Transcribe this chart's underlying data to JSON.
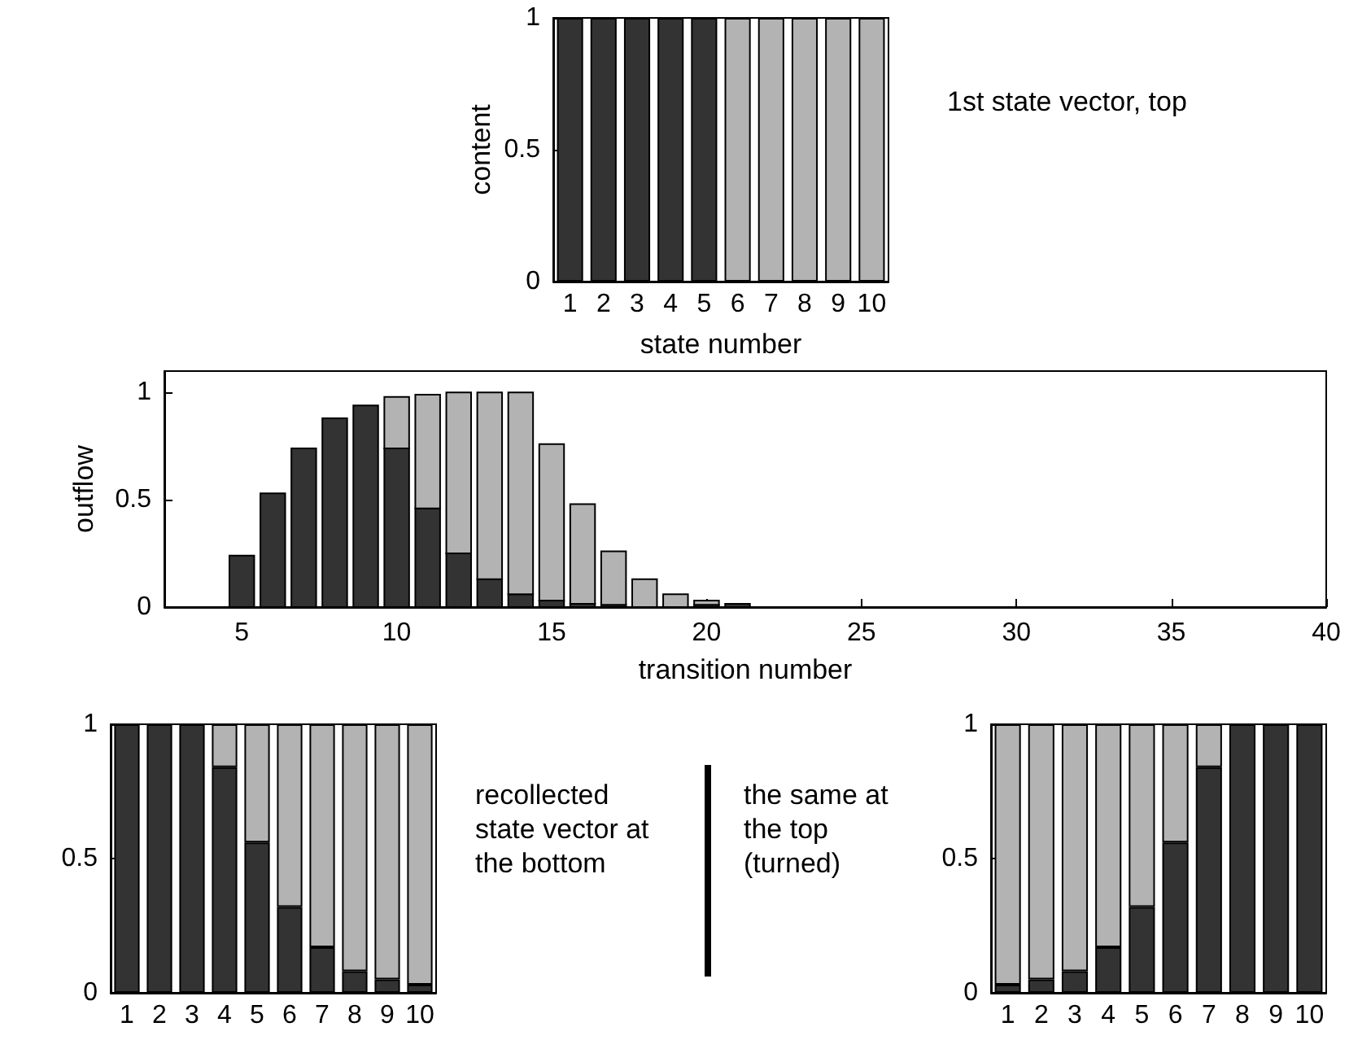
{
  "chart_data": [
    {
      "type": "bar",
      "stacked": true,
      "categories": [
        "1",
        "2",
        "3",
        "4",
        "5",
        "6",
        "7",
        "8",
        "9",
        "10"
      ],
      "xlabel": "state number",
      "ylabel": "content",
      "ylim": [
        0,
        1
      ],
      "yticks": [
        0,
        0.5,
        1
      ],
      "annotations": [
        "1st state vector, top"
      ],
      "series": [
        {
          "color": "#333333",
          "values": [
            1,
            1,
            1,
            1,
            1,
            0,
            0,
            0,
            0,
            0
          ]
        },
        {
          "color": "#b3b3b3",
          "values": [
            0,
            0,
            0,
            0,
            0,
            1,
            1,
            1,
            1,
            1
          ]
        }
      ]
    },
    {
      "type": "bar",
      "stacked": true,
      "x": [
        5,
        6,
        7,
        8,
        9,
        10,
        11,
        12,
        13,
        14,
        15,
        16,
        17,
        18,
        19,
        20,
        21,
        22,
        23,
        24,
        25,
        26,
        27,
        28,
        29,
        30,
        31,
        32,
        33,
        34,
        35,
        36,
        37,
        38,
        39,
        40
      ],
      "xlim": [
        2.5,
        40
      ],
      "xticks": [
        5,
        10,
        15,
        20,
        25,
        30,
        35,
        40
      ],
      "xlabel": "transition number",
      "ylabel": "outflow",
      "ylim": [
        0,
        1.1
      ],
      "yticks": [
        0,
        0.5,
        1
      ],
      "series": [
        {
          "color": "#333333",
          "values": [
            0.24,
            0.53,
            0.74,
            0.88,
            0.94,
            0.74,
            0.46,
            0.25,
            0.13,
            0.06,
            0.03,
            0.015,
            0.01,
            0,
            0,
            0.01,
            0.015,
            0,
            0,
            0,
            0,
            0,
            0,
            0,
            0,
            0,
            0,
            0,
            0,
            0,
            0,
            0,
            0,
            0,
            0,
            0
          ]
        },
        {
          "color": "#b3b3b3",
          "values": [
            0,
            0,
            0,
            0,
            0,
            0.24,
            0.53,
            0.75,
            0.87,
            0.94,
            0.73,
            0.465,
            0.25,
            0.13,
            0.06,
            0.02,
            0,
            0,
            0,
            0,
            0,
            0,
            0,
            0,
            0,
            0,
            0,
            0,
            0,
            0,
            0,
            0,
            0,
            0,
            0,
            0
          ]
        }
      ]
    },
    {
      "type": "bar",
      "stacked": true,
      "categories": [
        "1",
        "2",
        "3",
        "4",
        "5",
        "6",
        "7",
        "8",
        "9",
        "10"
      ],
      "ylim": [
        0,
        1
      ],
      "yticks": [
        0,
        0.5,
        1
      ],
      "annotations": [
        "recollected state vector at the bottom"
      ],
      "series": [
        {
          "color": "#333333",
          "values": [
            1,
            1,
            1,
            0.84,
            0.56,
            0.32,
            0.17,
            0.08,
            0.05,
            0.03
          ]
        },
        {
          "color": "#b3b3b3",
          "values": [
            0,
            0,
            0,
            0.16,
            0.44,
            0.68,
            0.83,
            0.92,
            0.95,
            0.97
          ]
        }
      ]
    },
    {
      "type": "bar",
      "stacked": true,
      "categories": [
        "1",
        "2",
        "3",
        "4",
        "5",
        "6",
        "7",
        "8",
        "9",
        "10"
      ],
      "ylim": [
        0,
        1
      ],
      "yticks": [
        0,
        0.5,
        1
      ],
      "annotations": [
        "the same at the top (turned)"
      ],
      "series": [
        {
          "color": "#333333",
          "values": [
            0.03,
            0.05,
            0.08,
            0.17,
            0.32,
            0.56,
            0.84,
            1,
            1,
            1
          ]
        },
        {
          "color": "#b3b3b3",
          "values": [
            0.97,
            0.95,
            0.92,
            0.83,
            0.68,
            0.44,
            0.16,
            0,
            0,
            0
          ]
        }
      ]
    }
  ]
}
